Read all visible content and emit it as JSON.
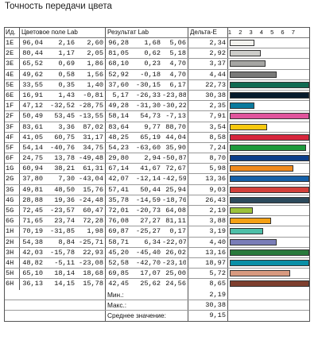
{
  "title": "Точность передачи цвета",
  "headers": {
    "id": "Ид.",
    "target": "Цветовое поле Lab",
    "result": "Результат Lab",
    "delta": "Дельта-E",
    "scale": [
      "1",
      "2",
      "3",
      "4",
      "5",
      "6",
      "7"
    ]
  },
  "rows": [
    {
      "id": "1E",
      "t": [
        "96,04",
        "2,16",
        "2,60"
      ],
      "r": [
        "96,28",
        "1,68",
        "5,06"
      ],
      "de": "2,34",
      "color": "#f3f3ef"
    },
    {
      "id": "2E",
      "t": [
        "80,44",
        "1,17",
        "2,05"
      ],
      "r": [
        "81,05",
        "0,62",
        "5,18"
      ],
      "de": "2,92",
      "color": "#cdcdca"
    },
    {
      "id": "3E",
      "t": [
        "65,52",
        "0,69",
        "1,86"
      ],
      "r": [
        "68,10",
        "0,23",
        "4,70"
      ],
      "de": "3,37",
      "color": "#a5a5a3"
    },
    {
      "id": "4E",
      "t": [
        "49,62",
        "0,58",
        "1,56"
      ],
      "r": [
        "52,92",
        "-0,18",
        "4,70"
      ],
      "de": "4,44",
      "color": "#7a7a79"
    },
    {
      "id": "5E",
      "t": [
        "33,55",
        "0,35",
        "1,40"
      ],
      "r": [
        "37,60",
        "-30,15",
        "6,17"
      ],
      "de": "22,73",
      "color": "#106a52"
    },
    {
      "id": "6E",
      "t": [
        "16,91",
        "1,43",
        "-0,81"
      ],
      "r": [
        "5,17",
        "-26,33",
        "-23,88"
      ],
      "de": "30,38",
      "color": "#061a2c"
    },
    {
      "id": "1F",
      "t": [
        "47,12",
        "-32,52",
        "-28,75"
      ],
      "r": [
        "49,28",
        "-31,30",
        "-30,22"
      ],
      "de": "2,35",
      "color": "#0a7a9e"
    },
    {
      "id": "2F",
      "t": [
        "50,49",
        "53,45",
        "-13,55"
      ],
      "r": [
        "58,14",
        "54,73",
        "-7,13"
      ],
      "de": "7,91",
      "color": "#e0549c"
    },
    {
      "id": "3F",
      "t": [
        "83,61",
        "3,36",
        "87,02"
      ],
      "r": [
        "83,64",
        "9,77",
        "88,70"
      ],
      "de": "3,54",
      "color": "#f6c80e"
    },
    {
      "id": "4F",
      "t": [
        "41,05",
        "60,75",
        "31,17"
      ],
      "r": [
        "48,25",
        "65,19",
        "44,04"
      ],
      "de": "8,58",
      "color": "#d7263d"
    },
    {
      "id": "5F",
      "t": [
        "54,14",
        "-40,76",
        "34,75"
      ],
      "r": [
        "54,23",
        "-63,60",
        "35,90"
      ],
      "de": "7,24",
      "color": "#1c9a3c"
    },
    {
      "id": "6F",
      "t": [
        "24,75",
        "13,78",
        "-49,48"
      ],
      "r": [
        "29,80",
        "2,94",
        "-50,87"
      ],
      "de": "8,70",
      "color": "#0b3e8a"
    },
    {
      "id": "1G",
      "t": [
        "60,94",
        "38,21",
        "61,31"
      ],
      "r": [
        "67,14",
        "41,67",
        "72,67"
      ],
      "de": "5,98",
      "color": "#f08a1c"
    },
    {
      "id": "2G",
      "t": [
        "37,80",
        "7,30",
        "-43,04"
      ],
      "r": [
        "42,07",
        "-12,14",
        "-42,59"
      ],
      "de": "13,36",
      "color": "#1460a8"
    },
    {
      "id": "3G",
      "t": [
        "49,81",
        "48,50",
        "15,76"
      ],
      "r": [
        "57,41",
        "50,44",
        "25,94"
      ],
      "de": "9,03",
      "color": "#d3403a"
    },
    {
      "id": "4G",
      "t": [
        "28,88",
        "19,36",
        "-24,48"
      ],
      "r": [
        "35,78",
        "-14,59",
        "-18,76"
      ],
      "de": "26,43",
      "color": "#2c4a5c"
    },
    {
      "id": "5G",
      "t": [
        "72,45",
        "-23,57",
        "60,47"
      ],
      "r": [
        "72,01",
        "-20,73",
        "64,08"
      ],
      "de": "2,19",
      "color": "#9cc23a"
    },
    {
      "id": "6G",
      "t": [
        "71,65",
        "23,74",
        "72,28"
      ],
      "r": [
        "76,08",
        "27,27",
        "81,11"
      ],
      "de": "3,88",
      "color": "#f5a114"
    },
    {
      "id": "1H",
      "t": [
        "70,19",
        "-31,85",
        "1,98"
      ],
      "r": [
        "69,87",
        "-25,27",
        "0,17"
      ],
      "de": "3,19",
      "color": "#4dbfa8"
    },
    {
      "id": "2H",
      "t": [
        "54,38",
        "8,84",
        "-25,71"
      ],
      "r": [
        "58,71",
        "6,34",
        "-22,07"
      ],
      "de": "4,40",
      "color": "#7a7db8"
    },
    {
      "id": "3H",
      "t": [
        "42,03",
        "-15,78",
        "22,93"
      ],
      "r": [
        "45,20",
        "-45,40",
        "26,02"
      ],
      "de": "13,16",
      "color": "#2a7a3c"
    },
    {
      "id": "4H",
      "t": [
        "48,82",
        "-5,11",
        "-23,08"
      ],
      "r": [
        "52,58",
        "-42,70",
        "-23,10"
      ],
      "de": "18,97",
      "color": "#0a8fa6"
    },
    {
      "id": "5H",
      "t": [
        "65,10",
        "18,14",
        "18,68"
      ],
      "r": [
        "69,85",
        "17,07",
        "25,00"
      ],
      "de": "5,72",
      "color": "#d79a80"
    },
    {
      "id": "6H",
      "t": [
        "36,13",
        "14,15",
        "15,78"
      ],
      "r": [
        "42,45",
        "25,62",
        "24,56"
      ],
      "de": "8,65",
      "color": "#7e3f2e"
    }
  ],
  "summary": [
    {
      "label": "Мин.:",
      "value": "2,19"
    },
    {
      "label": "Макс.:",
      "value": "30,38"
    },
    {
      "label": "Среднее значение:",
      "value": "9,15"
    }
  ]
}
